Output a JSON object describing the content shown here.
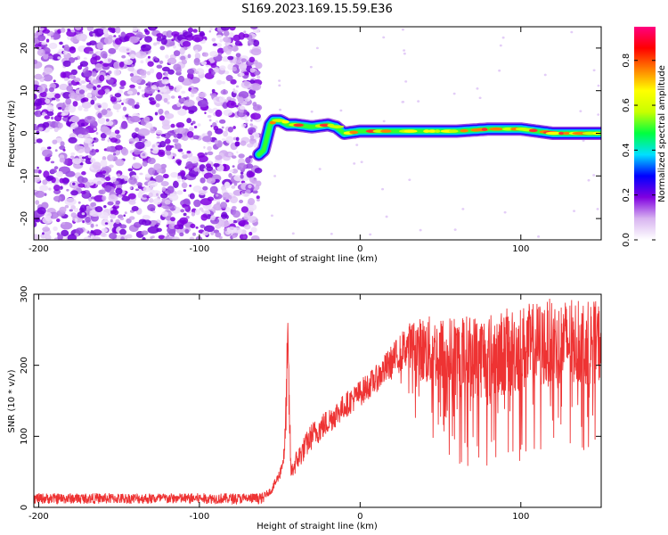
{
  "title": "S169.2023.169.15.59.E36",
  "chart_data": [
    {
      "type": "heatmap",
      "xlabel": "Height of straight line (km)",
      "ylabel": "Frequency (Hz)",
      "xlim": [
        -203,
        150
      ],
      "ylim": [
        -25,
        25
      ],
      "xticks": [
        -200,
        -100,
        0,
        100
      ],
      "yticks": [
        -20,
        -10,
        0,
        10,
        20
      ],
      "colorbar": {
        "label": "Normalized spectral amplitude",
        "range": [
          0.0,
          0.95
        ],
        "ticks": [
          0.0,
          0.2,
          0.4,
          0.6,
          0.8
        ],
        "tick_labels": [
          "0.0",
          "0.2",
          "0.4",
          "0.6",
          "0.8"
        ],
        "colormap": [
          "#ffffff",
          "#d8b4f0",
          "#8000e0",
          "#0000ff",
          "#00e0ff",
          "#00ff40",
          "#c8ff00",
          "#ffff00",
          "#ff8000",
          "#ff0000",
          "#ff0080"
        ]
      },
      "noise_region": {
        "x_from": -203,
        "x_to": -63,
        "y_from": -25,
        "y_to": 25
      },
      "signal_ridge": {
        "x": [
          -63,
          -60,
          -58,
          -56,
          -54,
          -50,
          -45,
          -40,
          -30,
          -20,
          -15,
          -10,
          0,
          20,
          40,
          60,
          80,
          100,
          120,
          150
        ],
        "y": [
          -5,
          -4,
          -1,
          2,
          3,
          3,
          2,
          2,
          1.5,
          2,
          1.5,
          0,
          0.5,
          0.5,
          0.5,
          0.5,
          1,
          1,
          0,
          0
        ]
      },
      "grid": false
    },
    {
      "type": "line",
      "xlabel": "Height of straight line (km)",
      "ylabel": "SNR (10 * v/v)",
      "xlim": [
        -203,
        150
      ],
      "ylim": [
        0,
        300
      ],
      "xticks": [
        -200,
        -100,
        0,
        100
      ],
      "yticks": [
        0,
        100,
        200,
        300
      ],
      "color": "#ee3333",
      "envelope": {
        "x": [
          -203,
          -150,
          -100,
          -60,
          -55,
          -50,
          -47,
          -45,
          -43,
          -40,
          -35,
          -30,
          -20,
          -10,
          0,
          10,
          20,
          30,
          40,
          60,
          80,
          100,
          120,
          150
        ],
        "low": [
          5,
          5,
          5,
          5,
          10,
          25,
          40,
          50,
          20,
          20,
          35,
          50,
          70,
          95,
          110,
          130,
          140,
          150,
          90,
          60,
          50,
          60,
          70,
          80
        ],
        "high": [
          20,
          20,
          20,
          20,
          30,
          55,
          90,
          280,
          60,
          80,
          100,
          120,
          140,
          160,
          180,
          200,
          230,
          260,
          270,
          270,
          275,
          285,
          295,
          290
        ]
      },
      "grid": false
    }
  ]
}
